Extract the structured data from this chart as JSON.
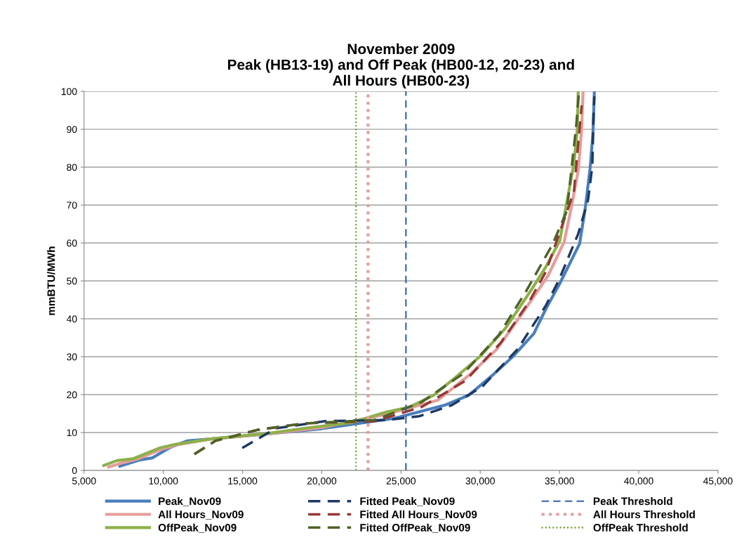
{
  "chart_data": {
    "type": "line",
    "title": "November 2009\nPeak (HB13-19) and Off Peak (HB00-12, 20-23) and\nAll Hours (HB00-23)",
    "ylabel": "mmBTU/MWh",
    "xlim": [
      5000,
      45000
    ],
    "xticks": [
      {
        "value": 5000,
        "label": "5,000"
      },
      {
        "value": 10000,
        "label": "10,000"
      },
      {
        "value": 15000,
        "label": "15,000"
      },
      {
        "value": 20000,
        "label": "20,000"
      },
      {
        "value": 25000,
        "label": "25,000"
      },
      {
        "value": 30000,
        "label": "30,000"
      },
      {
        "value": 35000,
        "label": "35,000"
      },
      {
        "value": 40000,
        "label": "40,000"
      },
      {
        "value": 45000,
        "label": "45,000"
      }
    ],
    "ylim": [
      0,
      100
    ],
    "yticks": [
      0,
      10,
      20,
      30,
      40,
      50,
      60,
      70,
      80,
      90,
      100
    ],
    "grid": "y",
    "legend": "bottom",
    "marker": "none",
    "series": [
      {
        "name": "Peak_Nov09",
        "color": "#4a7ebb",
        "line_style": "solid",
        "x": [
          7260,
          8550,
          9300,
          10450,
          11500,
          13000,
          16660,
          20000,
          24540,
          27750,
          29260,
          30850,
          32050,
          33380,
          34140,
          35030,
          36270,
          36620,
          36930,
          37110,
          37200
        ],
        "values": [
          1.1,
          2.8,
          3.3,
          6.1,
          7.8,
          8.3,
          9.7,
          11,
          13.7,
          17.2,
          19.8,
          25.4,
          30,
          36.1,
          42.6,
          49.4,
          59.8,
          69,
          79.6,
          88.9,
          100
        ]
      },
      {
        "name": "All Hours_Nov09",
        "color": "#e59c9c",
        "line_style": "solid",
        "x": [
          6550,
          7500,
          8300,
          9900,
          10900,
          13000,
          16660,
          20000,
          24070,
          27310,
          29260,
          31030,
          32630,
          34270,
          35290,
          35730,
          36180,
          36400,
          36490
        ],
        "values": [
          0.9,
          2.1,
          2.9,
          5.6,
          6.8,
          8.3,
          9.7,
          11.3,
          14.8,
          18.5,
          25,
          31.9,
          41.3,
          51.3,
          60.2,
          69,
          79,
          90.2,
          100
        ]
      },
      {
        "name": "OffPeak_Nov09",
        "color": "#8db04a",
        "line_style": "solid",
        "x": [
          6240,
          7080,
          8100,
          9750,
          10770,
          13000,
          16660,
          18880,
          21850,
          24070,
          25530,
          27040,
          28200,
          29970,
          31610,
          33250,
          34140,
          35020,
          35470,
          35910,
          36130,
          36180
        ],
        "values": [
          1.3,
          2.6,
          3.1,
          5.9,
          6.9,
          8.3,
          9.8,
          11.1,
          12.6,
          15.4,
          16.7,
          19.8,
          23.7,
          30,
          37.6,
          47.8,
          53.7,
          60.6,
          70.9,
          80.9,
          90.2,
          100
        ]
      },
      {
        "name": "Fitted Peak_Nov09",
        "color": "#1f3864",
        "line_style": "dashed",
        "x": [
          14980,
          17110,
          20210,
          24070,
          26150,
          28200,
          30150,
          32360,
          34140,
          34940,
          36180,
          36800,
          37070,
          37150,
          37200
        ],
        "values": [
          5.9,
          11.1,
          13,
          13.3,
          14.3,
          17.2,
          22.2,
          32,
          43.5,
          50,
          62.4,
          71.3,
          80.2,
          93.9,
          98.7
        ]
      },
      {
        "name": "Fitted All Hours_Nov09",
        "color": "#953735",
        "line_style": "dashed",
        "x": [
          11960,
          13290,
          15950,
          18880,
          23320,
          26290,
          29080,
          31300,
          33070,
          34140,
          35910,
          36400
        ],
        "values": [
          4.3,
          7.8,
          10.7,
          12.4,
          13,
          16.7,
          23.7,
          33.7,
          44.4,
          52.4,
          73.5,
          96.3
        ]
      },
      {
        "name": "Fitted OffPeak_Nov09",
        "color": "#4f6228",
        "line_style": "dashed",
        "x": [
          11960,
          13290,
          15950,
          18880,
          23320,
          26290,
          28950,
          31170,
          32940,
          34580,
          35470,
          36050,
          36220
        ],
        "values": [
          4.3,
          7.8,
          10.7,
          12.4,
          13.3,
          18,
          25.6,
          35.7,
          47.6,
          59.8,
          68.5,
          90.7,
          99.6
        ]
      }
    ],
    "ref_lines": [
      {
        "axis": "x",
        "value": 25310,
        "label": "Peak Threshold",
        "color": "#2e63b0",
        "line_style": "dashed"
      },
      {
        "axis": "x",
        "value": 22920,
        "label": "All Hours Threshold",
        "color": "#e59c9c",
        "line_style": "dotted"
      },
      {
        "axis": "x",
        "value": 22160,
        "label": "OffPeak Threshold",
        "color": "#6f9a2a",
        "line_style": "dotted"
      }
    ]
  }
}
